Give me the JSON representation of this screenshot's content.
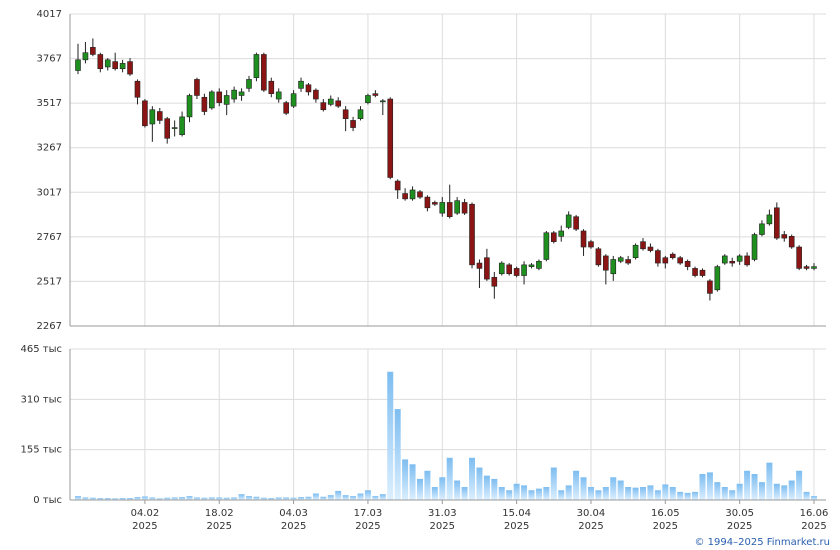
{
  "chart_data": [
    {
      "type": "candlestick",
      "ylim": [
        2267,
        4017
      ],
      "yticks": [
        2267,
        2517,
        2767,
        3017,
        3267,
        3517,
        3767,
        4017
      ],
      "grid": true,
      "up_color": "#1f8f1f",
      "down_color": "#8b1414",
      "open": [
        3700,
        3760,
        3830,
        3790,
        3720,
        3750,
        3710,
        3750,
        3640,
        3530,
        3400,
        3470,
        3430,
        3380,
        3340,
        3440,
        3650,
        3550,
        3490,
        3580,
        3510,
        3540,
        3560,
        3600,
        3660,
        3790,
        3640,
        3540,
        3520,
        3500,
        3600,
        3620,
        3590,
        3520,
        3510,
        3530,
        3480,
        3420,
        3430,
        3520,
        3570,
        3530,
        3540,
        3080,
        3010,
        2980,
        3020,
        2990,
        2960,
        2900,
        2960,
        2900,
        2960,
        2950,
        2620,
        2650,
        2540,
        2560,
        2610,
        2590,
        2550,
        2600,
        2590,
        2640,
        2790,
        2770,
        2820,
        2880,
        2800,
        2740,
        2700,
        2660,
        2560,
        2630,
        2640,
        2650,
        2740,
        2710,
        2690,
        2650,
        2670,
        2650,
        2630,
        2590,
        2580,
        2520,
        2470,
        2620,
        2630,
        2630,
        2660,
        2640,
        2780,
        2840,
        2930,
        2780,
        2770,
        2710,
        2600,
        2590
      ],
      "high": [
        3850,
        3860,
        3880,
        3800,
        3770,
        3800,
        3760,
        3770,
        3650,
        3540,
        3500,
        3490,
        3440,
        3420,
        3470,
        3570,
        3660,
        3570,
        3590,
        3600,
        3590,
        3610,
        3600,
        3670,
        3800,
        3800,
        3660,
        3600,
        3530,
        3590,
        3660,
        3630,
        3600,
        3540,
        3560,
        3550,
        3500,
        3440,
        3500,
        3570,
        3590,
        3540,
        3550,
        3090,
        3040,
        3050,
        3030,
        3000,
        2970,
        2990,
        3060,
        2990,
        2980,
        2960,
        2640,
        2700,
        2570,
        2630,
        2620,
        2600,
        2630,
        2620,
        2640,
        2800,
        2800,
        2830,
        2910,
        2890,
        2810,
        2750,
        2710,
        2670,
        2660,
        2660,
        2660,
        2730,
        2760,
        2730,
        2700,
        2660,
        2680,
        2660,
        2640,
        2600,
        2590,
        2530,
        2610,
        2670,
        2650,
        2670,
        2680,
        2790,
        2860,
        2920,
        2960,
        2800,
        2780,
        2720,
        2610,
        2620
      ],
      "low": [
        3680,
        3740,
        3780,
        3690,
        3700,
        3700,
        3690,
        3670,
        3510,
        3380,
        3300,
        3400,
        3290,
        3330,
        3330,
        3410,
        3540,
        3450,
        3480,
        3500,
        3450,
        3520,
        3530,
        3580,
        3640,
        3580,
        3550,
        3520,
        3450,
        3490,
        3580,
        3560,
        3520,
        3470,
        3500,
        3490,
        3360,
        3360,
        3420,
        3510,
        3550,
        3450,
        3090,
        2980,
        2970,
        2970,
        2980,
        2910,
        2940,
        2880,
        2870,
        2890,
        2890,
        2590,
        2480,
        2520,
        2420,
        2550,
        2550,
        2540,
        2500,
        2590,
        2580,
        2630,
        2730,
        2740,
        2810,
        2800,
        2660,
        2700,
        2600,
        2500,
        2520,
        2620,
        2610,
        2640,
        2690,
        2680,
        2600,
        2590,
        2640,
        2610,
        2580,
        2540,
        2540,
        2410,
        2460,
        2610,
        2600,
        2610,
        2600,
        2630,
        2770,
        2830,
        2750,
        2740,
        2700,
        2580,
        2580,
        2580
      ],
      "close": [
        3760,
        3800,
        3790,
        3710,
        3760,
        3710,
        3740,
        3680,
        3550,
        3390,
        3480,
        3420,
        3320,
        3380,
        3440,
        3560,
        3560,
        3470,
        3580,
        3520,
        3560,
        3590,
        3580,
        3650,
        3790,
        3590,
        3570,
        3580,
        3460,
        3570,
        3640,
        3580,
        3540,
        3480,
        3540,
        3500,
        3430,
        3380,
        3480,
        3560,
        3560,
        3530,
        3100,
        3030,
        2980,
        3030,
        2990,
        2930,
        2950,
        2960,
        2880,
        2970,
        2900,
        2610,
        2590,
        2530,
        2490,
        2620,
        2560,
        2550,
        2610,
        2610,
        2630,
        2790,
        2740,
        2800,
        2890,
        2810,
        2710,
        2710,
        2610,
        2580,
        2640,
        2650,
        2620,
        2720,
        2700,
        2690,
        2620,
        2620,
        2650,
        2620,
        2600,
        2550,
        2550,
        2450,
        2600,
        2660,
        2620,
        2660,
        2610,
        2780,
        2840,
        2890,
        2760,
        2760,
        2710,
        2590,
        2590,
        2600
      ]
    },
    {
      "type": "bar",
      "ylim": [
        0,
        465
      ],
      "grid": true,
      "color": "#8cc8f2",
      "yticks": [
        {
          "value": 0,
          "label": "0 тыс"
        },
        {
          "value": 155,
          "label": "155 тыс"
        },
        {
          "value": 310,
          "label": "310 тыс"
        },
        {
          "value": 465,
          "label": "465 тыс"
        }
      ],
      "categories": [
        null,
        null,
        null,
        null,
        null,
        null,
        null,
        null,
        null,
        [
          "04.02",
          "2025"
        ],
        null,
        null,
        null,
        null,
        null,
        null,
        null,
        null,
        null,
        [
          "18.02",
          "2025"
        ],
        null,
        null,
        null,
        null,
        null,
        null,
        null,
        null,
        null,
        [
          "04.03",
          "2025"
        ],
        null,
        null,
        null,
        null,
        null,
        null,
        null,
        null,
        null,
        [
          "17.03",
          "2025"
        ],
        null,
        null,
        null,
        null,
        null,
        null,
        null,
        null,
        null,
        [
          "31.03",
          "2025"
        ],
        null,
        null,
        null,
        null,
        null,
        null,
        null,
        null,
        null,
        [
          "15.04",
          "2025"
        ],
        null,
        null,
        null,
        null,
        null,
        null,
        null,
        null,
        null,
        [
          "30.04",
          "2025"
        ],
        null,
        null,
        null,
        null,
        null,
        null,
        null,
        null,
        null,
        [
          "16.05",
          "2025"
        ],
        null,
        null,
        null,
        null,
        null,
        null,
        null,
        null,
        null,
        [
          "30.05",
          "2025"
        ],
        null,
        null,
        null,
        null,
        null,
        null,
        null,
        null,
        null,
        [
          "16.06",
          "2025"
        ]
      ],
      "values": [
        12,
        8,
        7,
        6,
        6,
        5,
        6,
        6,
        9,
        11,
        8,
        5,
        7,
        8,
        9,
        12,
        8,
        7,
        8,
        8,
        7,
        8,
        18,
        12,
        10,
        7,
        6,
        8,
        8,
        7,
        9,
        10,
        20,
        10,
        15,
        28,
        15,
        12,
        20,
        30,
        12,
        18,
        395,
        280,
        125,
        110,
        65,
        90,
        40,
        70,
        130,
        60,
        40,
        130,
        100,
        75,
        65,
        40,
        30,
        50,
        45,
        30,
        35,
        40,
        100,
        30,
        45,
        90,
        70,
        40,
        30,
        40,
        70,
        60,
        40,
        38,
        40,
        45,
        30,
        48,
        40,
        25,
        22,
        25,
        80,
        85,
        55,
        40,
        30,
        50,
        90,
        80,
        55,
        115,
        50,
        45,
        60,
        90,
        25,
        12
      ]
    }
  ],
  "footer": "© 1994–2025 Finmarket.ru"
}
